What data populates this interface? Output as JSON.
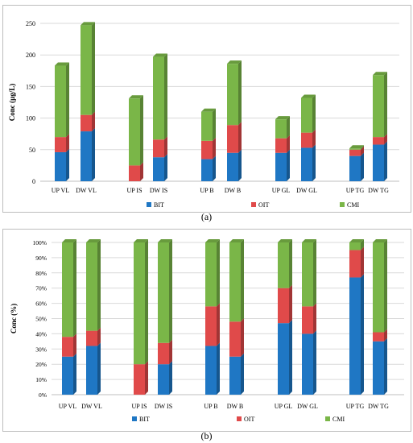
{
  "captions": {
    "a": "(a)",
    "b": "(b)"
  },
  "colors": {
    "BIT": "#1f77c4",
    "OIT": "#e04a4a",
    "CMI": "#7ab648"
  },
  "chart_data": [
    {
      "type": "bar",
      "stacked": true,
      "ylabel": "Conc (µg/L)",
      "ylim": [
        0,
        250
      ],
      "yticks": [
        0,
        50,
        100,
        150,
        200,
        250
      ],
      "categories": [
        "UP VL",
        "DW VL",
        "UP IS",
        "DW IS",
        "UP B",
        "DW B",
        "UP GL",
        "DW GL",
        "UP TG",
        "DW TG"
      ],
      "series": [
        {
          "name": "BIT",
          "values": [
            46,
            79,
            0,
            38,
            35,
            45,
            45,
            53,
            40,
            58
          ]
        },
        {
          "name": "OIT",
          "values": [
            24,
            26,
            25,
            28,
            29,
            44,
            23,
            24,
            10,
            12
          ]
        },
        {
          "name": "CMI",
          "values": [
            113,
            142,
            106,
            131,
            46,
            97,
            30,
            55,
            2,
            98
          ]
        }
      ],
      "legend": [
        "BIT",
        "OIT",
        "CMI"
      ],
      "legend_position": "bottom",
      "grid": true
    },
    {
      "type": "bar",
      "stacked": true,
      "ylabel": "Conc (%)",
      "ylim": [
        0,
        100
      ],
      "yticks": [
        "0%",
        "10%",
        "20%",
        "30%",
        "40%",
        "50%",
        "60%",
        "70%",
        "80%",
        "90%",
        "100%"
      ],
      "categories": [
        "UP VL",
        "DW VL",
        "UP IS",
        "DW IS",
        "UP B",
        "DW B",
        "UP GL",
        "DW GL",
        "UP TG",
        "DW TG"
      ],
      "series": [
        {
          "name": "BIT",
          "values": [
            25,
            32,
            0,
            20,
            32,
            25,
            47,
            40,
            77,
            35
          ]
        },
        {
          "name": "OIT",
          "values": [
            13,
            10,
            20,
            14,
            26,
            23,
            23,
            18,
            18,
            6
          ]
        },
        {
          "name": "CMI",
          "values": [
            62,
            58,
            80,
            66,
            42,
            52,
            30,
            42,
            5,
            59
          ]
        }
      ],
      "legend": [
        "BIT",
        "OIT",
        "CMI"
      ],
      "legend_position": "bottom",
      "grid": true
    }
  ]
}
